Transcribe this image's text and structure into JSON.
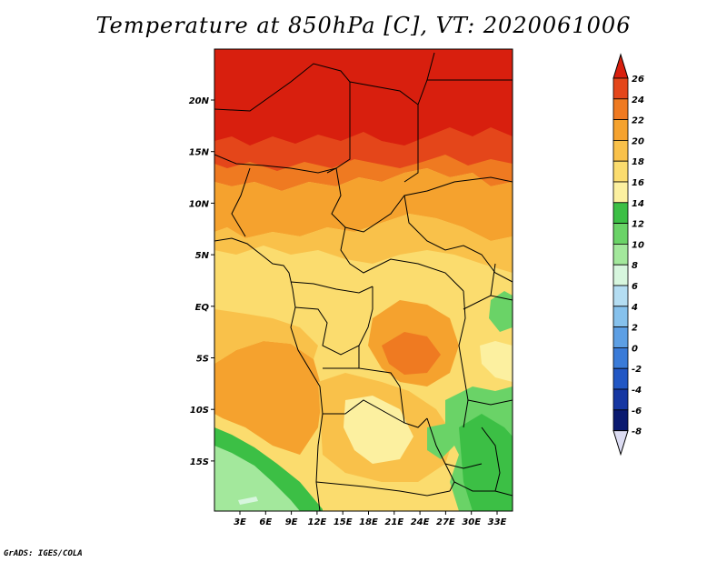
{
  "title": "Temperature at 850hPa [C], VT: 2020061006",
  "credit": "GrADS: IGES/COLA",
  "map": {
    "lon_labels": [
      "3E",
      "6E",
      "9E",
      "12E",
      "15E",
      "18E",
      "21E",
      "24E",
      "27E",
      "30E",
      "33E"
    ],
    "lat_labels": [
      "20N",
      "15N",
      "10N",
      "5N",
      "EQ",
      "5S",
      "10S",
      "15S"
    ]
  },
  "colorbar": {
    "levels": [
      "26",
      "24",
      "22",
      "20",
      "18",
      "16",
      "14",
      "12",
      "10",
      "8",
      "6",
      "4",
      "2",
      "0",
      "-2",
      "-4",
      "-6",
      "-8"
    ],
    "colors": [
      "#d81f0e",
      "#e4461a",
      "#ef7a21",
      "#f5a22e",
      "#f9c14a",
      "#fbdc6e",
      "#fcf0a0",
      "#3cbf45",
      "#6ad367",
      "#a3e89c",
      "#d7f6de",
      "#b4ddf2",
      "#86c1ec",
      "#5d9fe4",
      "#3a7bd8",
      "#2257c4",
      "#1637a2",
      "#0a1a70"
    ],
    "bottom_arrow_color": "#dcdcf2"
  }
}
